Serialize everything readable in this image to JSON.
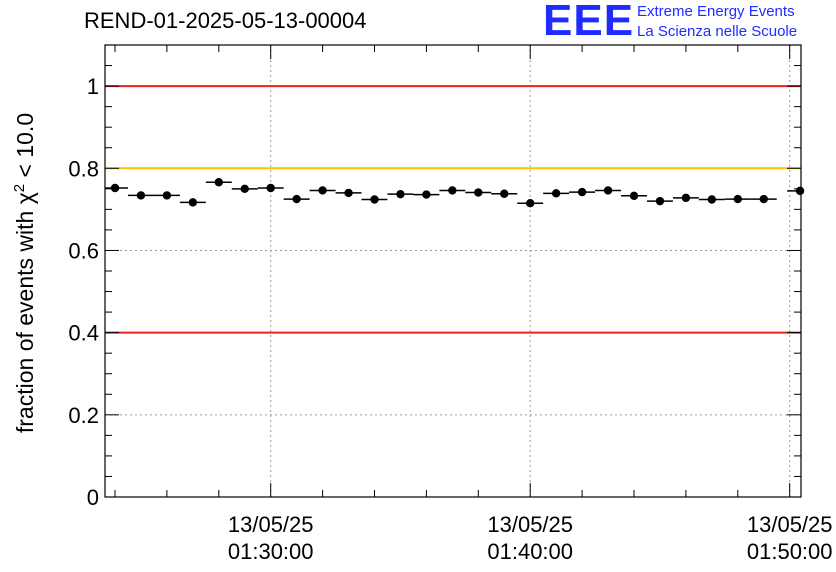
{
  "header": {
    "title": "REND-01-2025-05-13-00004"
  },
  "logo": {
    "mark": "EEE",
    "line1": "Extreme Energy Events",
    "line2": "La Scienza nelle Scuole"
  },
  "chart_data": {
    "type": "scatter",
    "title": "REND-01-2025-05-13-00004",
    "xlabel": "",
    "ylabel_parts": [
      "fraction of events with ",
      "χ",
      "2",
      " < 10.0"
    ],
    "xlim_minutes": [
      0,
      26.7
    ],
    "ylim": [
      0,
      1.1
    ],
    "grid": true,
    "yticks": [
      {
        "value": 0,
        "label": "0"
      },
      {
        "value": 0.2,
        "label": "0.2"
      },
      {
        "value": 0.4,
        "label": "0.4"
      },
      {
        "value": 0.6,
        "label": "0.6"
      },
      {
        "value": 0.8,
        "label": "0.8"
      },
      {
        "value": 1,
        "label": "1"
      }
    ],
    "xticks": [
      {
        "minute": 6,
        "date": "13/05/25",
        "time": "01:30:00"
      },
      {
        "minute": 16,
        "date": "13/05/25",
        "time": "01:40:00"
      },
      {
        "minute": 26,
        "date": "13/05/25",
        "time": "01:50:00"
      }
    ],
    "reference_lines": [
      {
        "y": 1.0,
        "color": "#e8231c"
      },
      {
        "y": 0.8,
        "color": "#ffc400"
      },
      {
        "y": 0.4,
        "color": "#e8231c"
      }
    ],
    "bin_width_minutes": 1,
    "series": [
      {
        "name": "fraction",
        "color": "#000000",
        "x_minutes": [
          0,
          1,
          2,
          3,
          4,
          5,
          6,
          7,
          8,
          9,
          10,
          11,
          12,
          13,
          14,
          15,
          16,
          17,
          18,
          19,
          20,
          21,
          22,
          23,
          24,
          25,
          26.4
        ],
        "values": [
          0.752,
          0.734,
          0.734,
          0.717,
          0.766,
          0.75,
          0.752,
          0.725,
          0.746,
          0.74,
          0.724,
          0.737,
          0.736,
          0.746,
          0.741,
          0.738,
          0.715,
          0.739,
          0.742,
          0.746,
          0.733,
          0.72,
          0.728,
          0.724,
          0.725,
          0.725,
          0.745
        ]
      }
    ]
  }
}
